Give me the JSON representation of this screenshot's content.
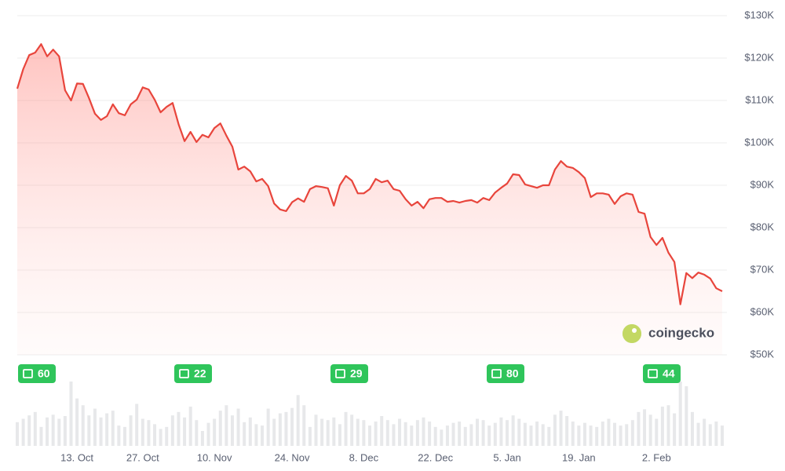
{
  "chart_data": {
    "type": "line",
    "color": "#e8453c",
    "grid": true,
    "ylim": [
      50,
      130
    ],
    "yticks": [
      {
        "value": 50,
        "label": "$50K"
      },
      {
        "value": 60,
        "label": "$60K"
      },
      {
        "value": 70,
        "label": "$70K"
      },
      {
        "value": 80,
        "label": "$80K"
      },
      {
        "value": 90,
        "label": "$90K"
      },
      {
        "value": 100,
        "label": "$100K"
      },
      {
        "value": 110,
        "label": "$110K"
      },
      {
        "value": 120,
        "label": "$120K"
      },
      {
        "value": 130,
        "label": "$130K"
      }
    ],
    "categories": [
      null,
      null,
      null,
      null,
      null,
      null,
      null,
      null,
      null,
      null,
      "13. Oct",
      null,
      null,
      null,
      null,
      null,
      null,
      null,
      null,
      null,
      null,
      "27. Oct",
      null,
      null,
      null,
      null,
      null,
      null,
      null,
      null,
      null,
      null,
      null,
      "10. Nov",
      null,
      null,
      null,
      null,
      null,
      null,
      null,
      null,
      null,
      null,
      null,
      null,
      "24. Nov",
      null,
      null,
      null,
      null,
      null,
      null,
      null,
      null,
      null,
      null,
      null,
      "8. Dec",
      null,
      null,
      null,
      null,
      null,
      null,
      null,
      null,
      null,
      null,
      null,
      "22. Dec",
      null,
      null,
      null,
      null,
      null,
      null,
      null,
      null,
      null,
      null,
      null,
      "5. Jan",
      null,
      null,
      null,
      null,
      null,
      null,
      null,
      null,
      null,
      null,
      null,
      "19. Jan",
      null,
      null,
      null,
      null,
      null,
      null,
      null,
      null,
      null,
      null,
      null,
      null,
      "2. Feb",
      null,
      null,
      null,
      null,
      null,
      null,
      null,
      null,
      null,
      null,
      null
    ],
    "values": [
      112.8,
      117.4,
      120.7,
      121.3,
      123.3,
      120.4,
      122,
      120.4,
      112.4,
      110,
      114,
      113.9,
      110.6,
      106.9,
      105.4,
      106.3,
      109.1,
      107,
      106.5,
      109.1,
      110.2,
      113.1,
      112.6,
      110.2,
      107.2,
      108.5,
      109.4,
      104.4,
      100.4,
      102.6,
      100.2,
      101.9,
      101.3,
      103.5,
      104.6,
      101.7,
      99.1,
      93.7,
      94.4,
      93.3,
      90.9,
      91.5,
      89.8,
      85.7,
      84.3,
      83.9,
      86,
      86.9,
      86.1,
      89.1,
      89.8,
      89.6,
      89.3,
      85.2,
      90,
      92.2,
      91.1,
      88.1,
      88.1,
      89.1,
      91.5,
      90.7,
      91.1,
      89.1,
      88.7,
      86.7,
      85.2,
      86.1,
      84.6,
      86.7,
      87,
      87,
      86.1,
      86.3,
      85.9,
      86.3,
      86.5,
      85.9,
      87,
      86.5,
      88.3,
      89.4,
      90.4,
      92.6,
      92.4,
      90.2,
      89.8,
      89.4,
      90,
      90,
      93.7,
      95.7,
      94.4,
      94.1,
      93.1,
      91.7,
      87.2,
      88.1,
      88.1,
      87.8,
      85.6,
      87.4,
      88.1,
      87.8,
      83.7,
      83.3,
      77.8,
      75.9,
      77.6,
      74.1,
      71.9,
      61.9,
      69.3,
      68.1,
      69.4,
      68.9,
      68,
      65.7,
      65
    ],
    "volumes": [
      35,
      40,
      45,
      50,
      28,
      42,
      46,
      40,
      44,
      95,
      70,
      60,
      45,
      55,
      42,
      48,
      52,
      30,
      28,
      45,
      62,
      40,
      38,
      32,
      25,
      28,
      45,
      50,
      42,
      58,
      38,
      22,
      34,
      40,
      52,
      60,
      45,
      55,
      35,
      42,
      32,
      30,
      55,
      40,
      48,
      50,
      56,
      75,
      60,
      28,
      46,
      40,
      38,
      42,
      32,
      50,
      46,
      40,
      38,
      30,
      36,
      44,
      38,
      32,
      40,
      35,
      30,
      38,
      42,
      36,
      28,
      24,
      30,
      34,
      36,
      28,
      32,
      40,
      38,
      30,
      34,
      42,
      38,
      45,
      40,
      34,
      30,
      36,
      32,
      28,
      46,
      52,
      44,
      36,
      30,
      34,
      30,
      28,
      36,
      40,
      34,
      30,
      32,
      38,
      50,
      54,
      46,
      40,
      58,
      60,
      48,
      95,
      88,
      50,
      34,
      40,
      32,
      36,
      30
    ],
    "news": [
      "60",
      "22",
      "29",
      "80",
      "44"
    ],
    "watermark": "coingecko"
  }
}
